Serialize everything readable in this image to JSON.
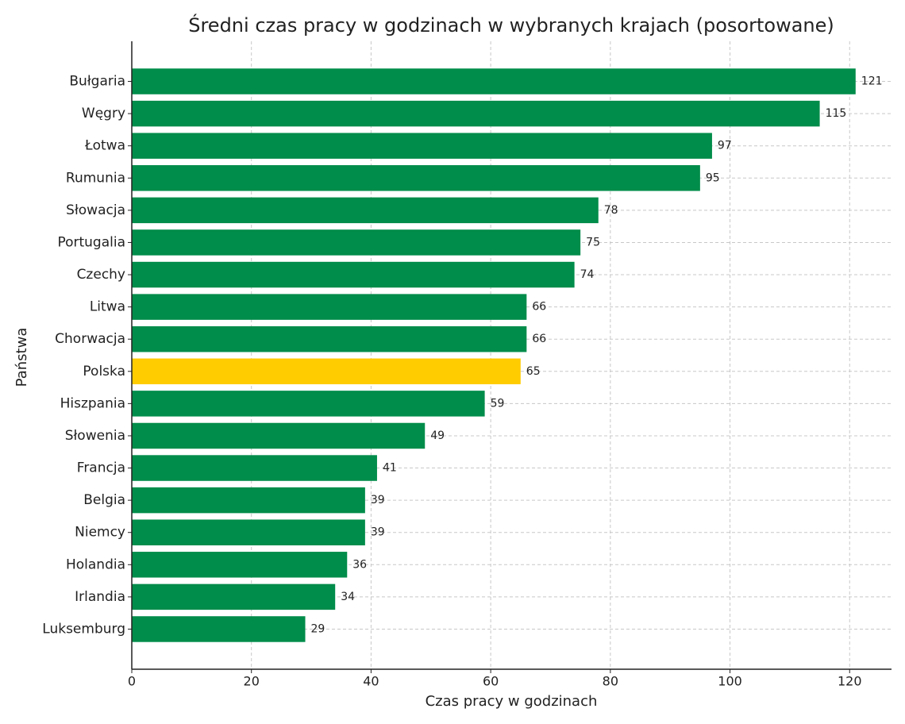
{
  "chart_data": {
    "type": "hbar",
    "title": "Średni czas pracy w godzinach w wybranych krajach (posortowane)",
    "xlabel": "Czas pracy w godzinach",
    "ylabel": "Państwa",
    "categories": [
      "Bułgaria",
      "Węgry",
      "Łotwa",
      "Rumunia",
      "Słowacja",
      "Portugalia",
      "Czechy",
      "Litwa",
      "Chorwacja",
      "Polska",
      "Hiszpania",
      "Słowenia",
      "Francja",
      "Belgia",
      "Niemcy",
      "Holandia",
      "Irlandia",
      "Luksemburg"
    ],
    "values": [
      121,
      115,
      97,
      95,
      78,
      75,
      74,
      66,
      66,
      65,
      59,
      49,
      41,
      39,
      39,
      36,
      34,
      29
    ],
    "colors": [
      "#008c4a",
      "#008c4a",
      "#008c4a",
      "#008c4a",
      "#008c4a",
      "#008c4a",
      "#008c4a",
      "#008c4a",
      "#008c4a",
      "#ffcc00",
      "#008c4a",
      "#008c4a",
      "#008c4a",
      "#008c4a",
      "#008c4a",
      "#008c4a",
      "#008c4a",
      "#008c4a"
    ],
    "xlim": [
      0,
      127
    ],
    "xticks": [
      0,
      20,
      40,
      60,
      80,
      100,
      120
    ],
    "grid": true
  }
}
